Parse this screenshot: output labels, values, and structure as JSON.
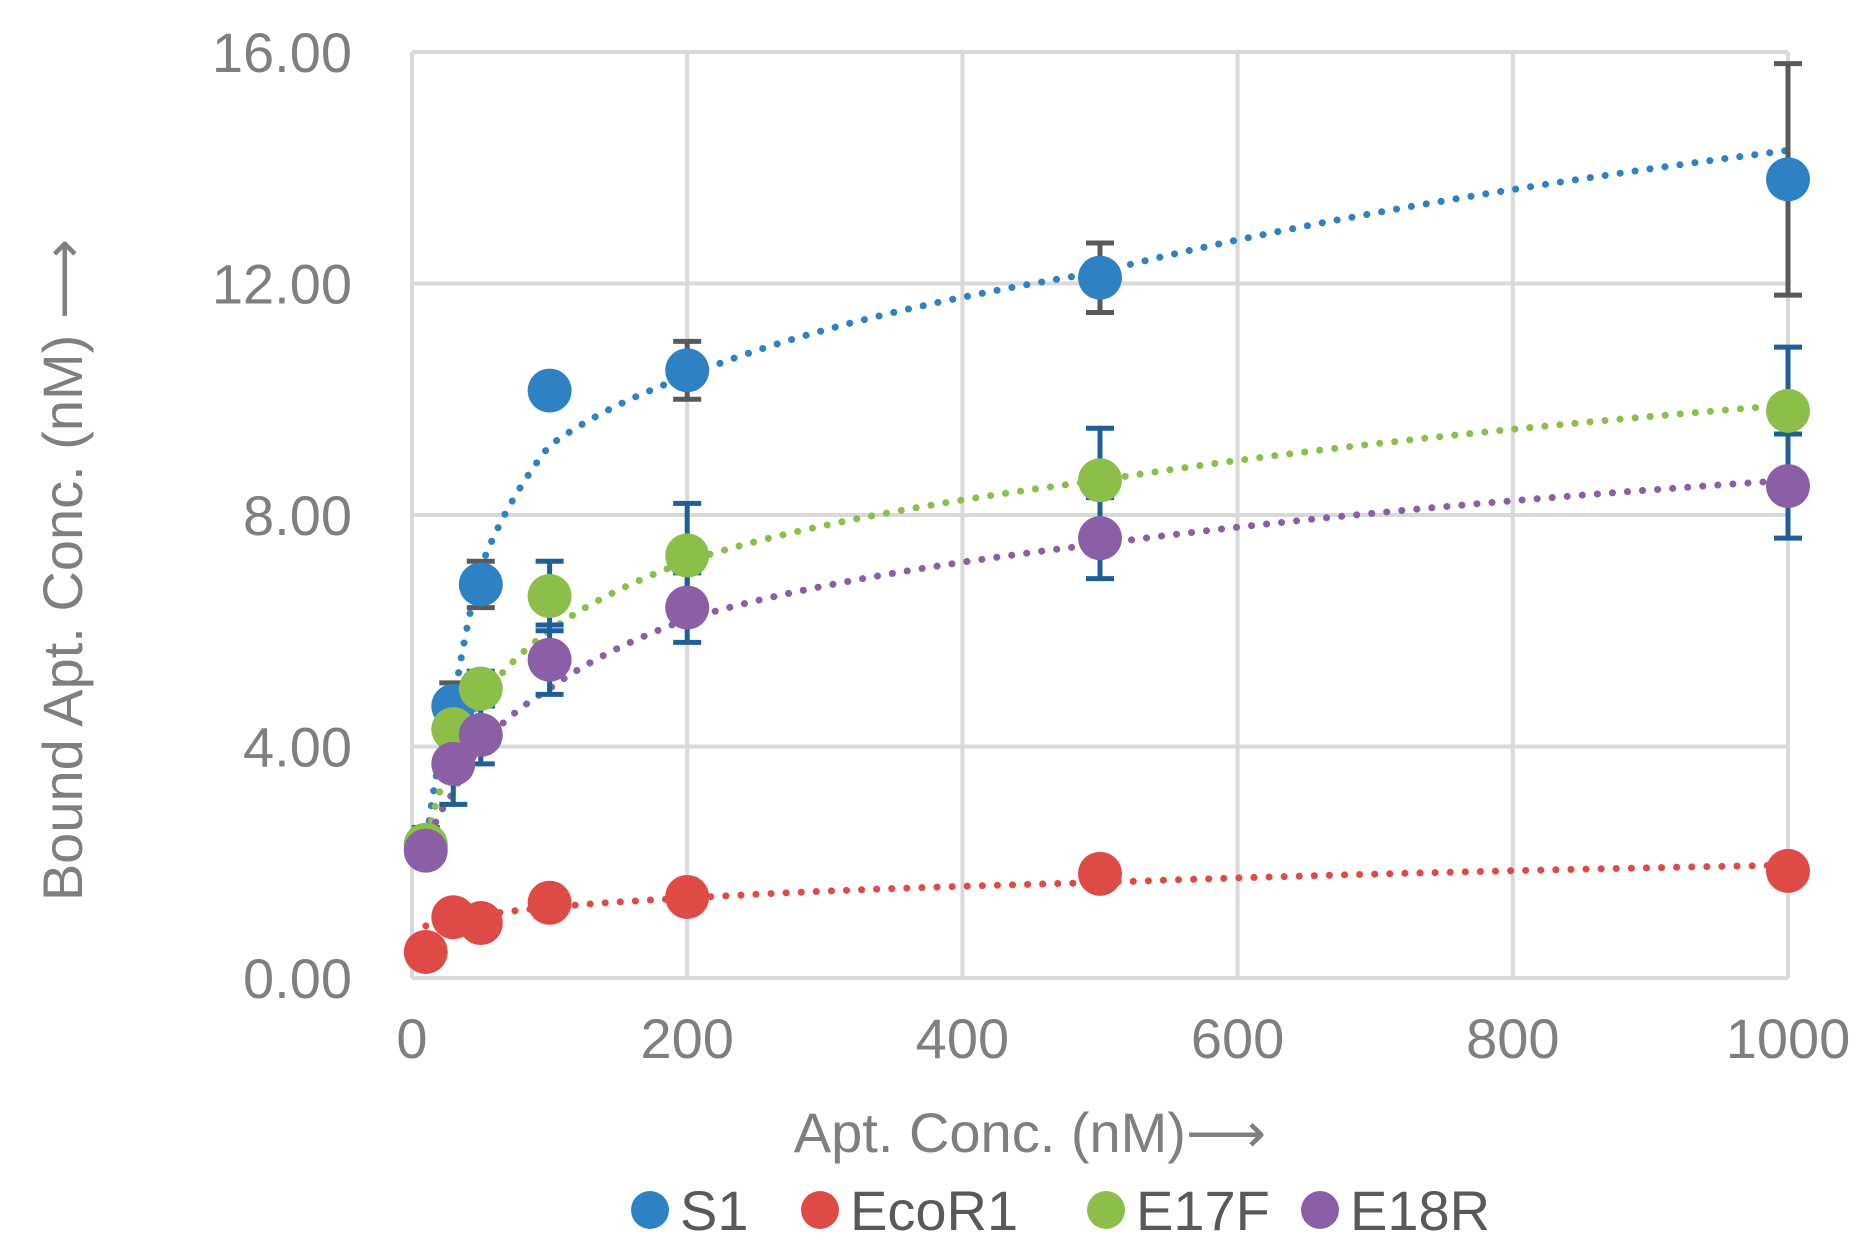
{
  "chart_data": {
    "type": "scatter",
    "title": "",
    "xlabel": "Apt. Conc. (nM)⟶",
    "ylabel": "Bound Apt. Conc. (nM) ⟶",
    "xlim": [
      0,
      1000
    ],
    "ylim": [
      0,
      16
    ],
    "x_ticks": [
      "0",
      "200",
      "400",
      "600",
      "800",
      "1000"
    ],
    "x_tick_values": [
      0,
      200,
      400,
      600,
      800,
      1000
    ],
    "y_ticks": [
      "0.00",
      "4.00",
      "8.00",
      "12.00",
      "16.00"
    ],
    "y_tick_values": [
      0,
      4,
      8,
      12,
      16
    ],
    "grid": true,
    "legend_position": "bottom",
    "trendline": "dotted logarithmic",
    "series": [
      {
        "name": "S1",
        "color": "#2e82c4",
        "x": [
          10,
          30,
          50,
          100,
          200,
          500,
          1000
        ],
        "y": [
          2.3,
          4.7,
          6.8,
          10.15,
          10.5,
          12.1,
          13.8
        ],
        "err": [
          0.3,
          0.4,
          0.4,
          0,
          0.5,
          0.6,
          2.0
        ],
        "fit": [
          2.2,
          4.7,
          7.1,
          9.2,
          10.4,
          12.2,
          14.3
        ]
      },
      {
        "name": "EcoR1",
        "color": "#de4b47",
        "x": [
          10,
          30,
          50,
          100,
          200,
          500,
          1000
        ],
        "y": [
          0.45,
          1.05,
          0.95,
          1.3,
          1.4,
          1.8,
          1.85
        ],
        "err": [
          0,
          0,
          0,
          0,
          0,
          0,
          0
        ],
        "fit": [
          0.9,
          1.0,
          1.08,
          1.22,
          1.38,
          1.65,
          1.95
        ]
      },
      {
        "name": "E17F",
        "color": "#8cbf4a",
        "x": [
          10,
          30,
          50,
          100,
          200,
          500,
          1000
        ],
        "y": [
          2.3,
          4.3,
          5.0,
          6.6,
          7.3,
          8.6,
          9.8
        ],
        "err": [
          0.2,
          0.3,
          0.3,
          0.6,
          0.9,
          0.9,
          1.1
        ],
        "fit": [
          2.2,
          3.8,
          4.8,
          6.0,
          7.2,
          8.6,
          9.9
        ]
      },
      {
        "name": "E18R",
        "color": "#8a5fa6",
        "x": [
          10,
          30,
          50,
          100,
          200,
          500,
          1000
        ],
        "y": [
          2.2,
          3.7,
          4.2,
          5.5,
          6.4,
          7.6,
          8.5
        ],
        "err": [
          0.2,
          0.7,
          0.5,
          0.6,
          0.6,
          0.7,
          0.9
        ],
        "fit": [
          2.2,
          3.2,
          4.0,
          5.0,
          6.2,
          7.5,
          8.6
        ]
      }
    ],
    "legend": [
      "S1",
      "EcoR1",
      "E17F",
      "E18R"
    ]
  }
}
